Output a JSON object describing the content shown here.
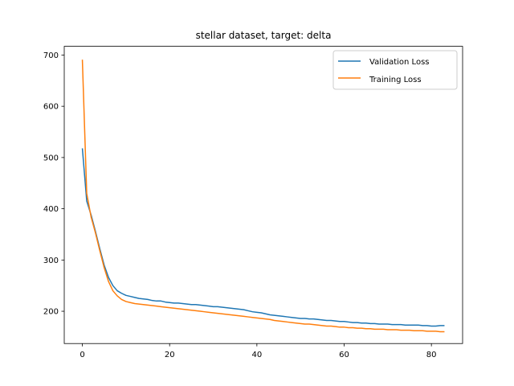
{
  "chart_data": {
    "type": "line",
    "title": "stellar dataset, target: delta",
    "xlabel": "",
    "ylabel": "",
    "xlim": [
      -4.15,
      87.15
    ],
    "ylim": [
      137,
      717
    ],
    "xticks": [
      0,
      20,
      40,
      60,
      80
    ],
    "yticks": [
      200,
      300,
      400,
      500,
      600,
      700
    ],
    "grid": false,
    "legend_position": "top-right",
    "series": [
      {
        "name": "Validation Loss",
        "color": "#1f77b4",
        "x": [
          0,
          1,
          2,
          3,
          4,
          5,
          6,
          7,
          8,
          9,
          10,
          11,
          12,
          13,
          14,
          15,
          16,
          17,
          18,
          19,
          20,
          21,
          22,
          23,
          24,
          25,
          26,
          27,
          28,
          29,
          30,
          31,
          32,
          33,
          34,
          35,
          36,
          37,
          38,
          39,
          40,
          41,
          42,
          43,
          44,
          45,
          46,
          47,
          48,
          49,
          50,
          51,
          52,
          53,
          54,
          55,
          56,
          57,
          58,
          59,
          60,
          61,
          62,
          63,
          64,
          65,
          66,
          67,
          68,
          69,
          70,
          71,
          72,
          73,
          74,
          75,
          76,
          77,
          78,
          79,
          80,
          81,
          82,
          83
        ],
        "values": [
          518,
          415,
          388,
          356,
          322,
          290,
          266,
          250,
          240,
          235,
          231,
          229,
          227,
          225,
          224,
          223,
          221,
          220,
          220,
          218,
          217,
          216,
          216,
          215,
          214,
          213,
          213,
          212,
          211,
          210,
          209,
          209,
          208,
          207,
          206,
          205,
          204,
          203,
          201,
          199,
          198,
          197,
          195,
          193,
          192,
          191,
          190,
          189,
          188,
          187,
          186,
          186,
          185,
          185,
          184,
          183,
          182,
          182,
          181,
          180,
          180,
          179,
          178,
          178,
          177,
          177,
          176,
          176,
          175,
          175,
          175,
          174,
          174,
          174,
          173,
          173,
          173,
          173,
          172,
          172,
          171,
          171,
          172,
          172
        ]
      },
      {
        "name": "Training Loss",
        "color": "#ff7f0e",
        "x": [
          0,
          1,
          2,
          3,
          4,
          5,
          6,
          7,
          8,
          9,
          10,
          11,
          12,
          13,
          14,
          15,
          16,
          17,
          18,
          19,
          20,
          21,
          22,
          23,
          24,
          25,
          26,
          27,
          28,
          29,
          30,
          31,
          32,
          33,
          34,
          35,
          36,
          37,
          38,
          39,
          40,
          41,
          42,
          43,
          44,
          45,
          46,
          47,
          48,
          49,
          50,
          51,
          52,
          53,
          54,
          55,
          56,
          57,
          58,
          59,
          60,
          61,
          62,
          63,
          64,
          65,
          66,
          67,
          68,
          69,
          70,
          71,
          72,
          73,
          74,
          75,
          76,
          77,
          78,
          79,
          80,
          81,
          82,
          83
        ],
        "values": [
          691,
          430,
          384,
          353,
          318,
          285,
          258,
          240,
          230,
          223,
          219,
          217,
          215,
          214,
          213,
          212,
          211,
          210,
          209,
          208,
          207,
          206,
          205,
          204,
          203,
          202,
          201,
          200,
          199,
          198,
          197,
          196,
          195,
          194,
          193,
          192,
          191,
          190,
          189,
          188,
          187,
          186,
          185,
          184,
          182,
          181,
          180,
          179,
          178,
          177,
          176,
          175,
          175,
          174,
          173,
          172,
          171,
          171,
          170,
          169,
          169,
          168,
          168,
          167,
          167,
          166,
          166,
          165,
          165,
          165,
          164,
          164,
          164,
          163,
          163,
          163,
          162,
          162,
          162,
          161,
          161,
          161,
          160,
          160
        ]
      }
    ]
  }
}
